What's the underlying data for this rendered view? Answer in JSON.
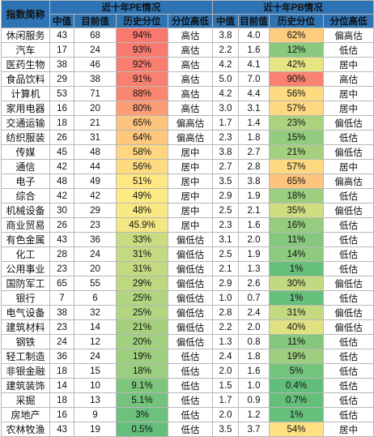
{
  "header": {
    "index_col": "指数简称",
    "pe_group": "近十年PE情况",
    "pb_group": "近十年PB情况",
    "sub_median": "中值",
    "sub_current": "目前值",
    "sub_percentile": "历史分位",
    "sub_level": "分位高低"
  },
  "colors": {
    "header_bg": "#2e74b5",
    "header_text": "#ffffff",
    "high_red": "#f8696b",
    "mid_yellow": "#ffeb84",
    "low_green": "#63be7b"
  },
  "rows": [
    {
      "name": "休闲服务",
      "pe_median": "43",
      "pe_current": "68",
      "pe_pct": "94%",
      "pe_level": "高估",
      "pb_median": "3.8",
      "pb_current": "4.0",
      "pb_pct": "62%",
      "pb_level": "偏高估"
    },
    {
      "name": "汽车",
      "pe_median": "17",
      "pe_current": "24",
      "pe_pct": "93%",
      "pe_level": "高估",
      "pb_median": "2.2",
      "pb_current": "1.6",
      "pb_pct": "12%",
      "pb_level": "低估"
    },
    {
      "name": "医药生物",
      "pe_median": "38",
      "pe_current": "46",
      "pe_pct": "92%",
      "pe_level": "高估",
      "pb_median": "4.2",
      "pb_current": "4.1",
      "pb_pct": "42%",
      "pb_level": "居中"
    },
    {
      "name": "食品饮料",
      "pe_median": "29",
      "pe_current": "38",
      "pe_pct": "91%",
      "pe_level": "高估",
      "pb_median": "5.0",
      "pb_current": "7.0",
      "pb_pct": "90%",
      "pb_level": "高估"
    },
    {
      "name": "计算机",
      "pe_median": "53",
      "pe_current": "71",
      "pe_pct": "88%",
      "pe_level": "高估",
      "pb_median": "4.2",
      "pb_current": "4.4",
      "pb_pct": "56%",
      "pb_level": "居中"
    },
    {
      "name": "家用电器",
      "pe_median": "16",
      "pe_current": "20",
      "pe_pct": "80%",
      "pe_level": "高估",
      "pb_median": "3.0",
      "pb_current": "3.1",
      "pb_pct": "57%",
      "pb_level": "居中"
    },
    {
      "name": "交通运输",
      "pe_median": "18",
      "pe_current": "21",
      "pe_pct": "65%",
      "pe_level": "偏高估",
      "pb_median": "1.7",
      "pb_current": "1.4",
      "pb_pct": "23%",
      "pb_level": "偏低估"
    },
    {
      "name": "纺织服装",
      "pe_median": "26",
      "pe_current": "31",
      "pe_pct": "64%",
      "pe_level": "偏高估",
      "pb_median": "2.3",
      "pb_current": "1.8",
      "pb_pct": "15%",
      "pb_level": "低估"
    },
    {
      "name": "传媒",
      "pe_median": "45",
      "pe_current": "48",
      "pe_pct": "58%",
      "pe_level": "居中",
      "pb_median": "3.8",
      "pb_current": "2.7",
      "pb_pct": "21%",
      "pb_level": "偏低估"
    },
    {
      "name": "通信",
      "pe_median": "42",
      "pe_current": "44",
      "pe_pct": "56%",
      "pe_level": "居中",
      "pb_median": "2.7",
      "pb_current": "2.8",
      "pb_pct": "57%",
      "pb_level": "居中"
    },
    {
      "name": "电子",
      "pe_median": "48",
      "pe_current": "49",
      "pe_pct": "51%",
      "pe_level": "居中",
      "pb_median": "3.5",
      "pb_current": "3.8",
      "pb_pct": "65%",
      "pb_level": "偏高估"
    },
    {
      "name": "综合",
      "pe_median": "42",
      "pe_current": "42",
      "pe_pct": "49%",
      "pe_level": "居中",
      "pb_median": "2.9",
      "pb_current": "1.9",
      "pb_pct": "18%",
      "pb_level": "低估"
    },
    {
      "name": "机械设备",
      "pe_median": "30",
      "pe_current": "29",
      "pe_pct": "48%",
      "pe_level": "居中",
      "pb_median": "2.5",
      "pb_current": "2.1",
      "pb_pct": "35%",
      "pb_level": "偏低估"
    },
    {
      "name": "商业贸易",
      "pe_median": "26",
      "pe_current": "23",
      "pe_pct": "45.9%",
      "pe_level": "居中",
      "pb_median": "2.3",
      "pb_current": "1.6",
      "pb_pct": "16%",
      "pb_level": "低估"
    },
    {
      "name": "有色金属",
      "pe_median": "43",
      "pe_current": "36",
      "pe_pct": "33%",
      "pe_level": "偏低估",
      "pb_median": "3.1",
      "pb_current": "2.0",
      "pb_pct": "11%",
      "pb_level": "低估"
    },
    {
      "name": "化工",
      "pe_median": "28",
      "pe_current": "24",
      "pe_pct": "31%",
      "pe_level": "偏低估",
      "pb_median": "2.5",
      "pb_current": "1.9",
      "pb_pct": "14%",
      "pb_level": "低估"
    },
    {
      "name": "公用事业",
      "pe_median": "23",
      "pe_current": "20",
      "pe_pct": "31%",
      "pe_level": "偏低估",
      "pb_median": "2.1",
      "pb_current": "1.3",
      "pb_pct": "1%",
      "pb_level": "低估"
    },
    {
      "name": "国防军工",
      "pe_median": "65",
      "pe_current": "55",
      "pe_pct": "29%",
      "pe_level": "偏低估",
      "pb_median": "2.9",
      "pb_current": "2.6",
      "pb_pct": "30%",
      "pb_level": "偏低估"
    },
    {
      "name": "银行",
      "pe_median": "7",
      "pe_current": "6",
      "pe_pct": "25%",
      "pe_level": "偏低估",
      "pb_median": "1.0",
      "pb_current": "0.7",
      "pb_pct": "1%",
      "pb_level": "低估"
    },
    {
      "name": "电气设备",
      "pe_median": "38",
      "pe_current": "32",
      "pe_pct": "25%",
      "pe_level": "偏低估",
      "pb_median": "2.8",
      "pb_current": "2.4",
      "pb_pct": "31%",
      "pb_level": "偏低估"
    },
    {
      "name": "建筑材料",
      "pe_median": "23",
      "pe_current": "14",
      "pe_pct": "21%",
      "pe_level": "偏低估",
      "pb_median": "2.2",
      "pb_current": "2.0",
      "pb_pct": "40%",
      "pb_level": "偏低估"
    },
    {
      "name": "钢铁",
      "pe_median": "24",
      "pe_current": "12",
      "pe_pct": "20%",
      "pe_level": "偏低估",
      "pb_median": "1.3",
      "pb_current": "0.8",
      "pb_pct": "11%",
      "pb_level": "低估"
    },
    {
      "name": "轻工制造",
      "pe_median": "36",
      "pe_current": "24",
      "pe_pct": "19%",
      "pe_level": "低估",
      "pb_median": "2.4",
      "pb_current": "1.8",
      "pb_pct": "19%",
      "pb_level": "低估"
    },
    {
      "name": "非银金融",
      "pe_median": "18",
      "pe_current": "15",
      "pe_pct": "18%",
      "pe_level": "低估",
      "pb_median": "2.0",
      "pb_current": "1.6",
      "pb_pct": "5%",
      "pb_level": "低估"
    },
    {
      "name": "建筑装饰",
      "pe_median": "14",
      "pe_current": "10",
      "pe_pct": "9.1%",
      "pe_level": "低估",
      "pb_median": "1.5",
      "pb_current": "1.0",
      "pb_pct": "0.4%",
      "pb_level": "低估"
    },
    {
      "name": "采掘",
      "pe_median": "18",
      "pe_current": "13",
      "pe_pct": "5.1%",
      "pe_level": "低估",
      "pb_median": "1.7",
      "pb_current": "0.9",
      "pb_pct": "0.7%",
      "pb_level": "低估"
    },
    {
      "name": "房地产",
      "pe_median": "16",
      "pe_current": "9",
      "pe_pct": "3%",
      "pe_level": "低估",
      "pb_median": "2.0",
      "pb_current": "1.2",
      "pb_pct": "1%",
      "pb_level": "低估"
    },
    {
      "name": "农林牧渔",
      "pe_median": "43",
      "pe_current": "19",
      "pe_pct": "0.5%",
      "pe_level": "低估",
      "pb_median": "3.5",
      "pb_current": "3.7",
      "pb_pct": "54%",
      "pb_level": "居中"
    }
  ]
}
